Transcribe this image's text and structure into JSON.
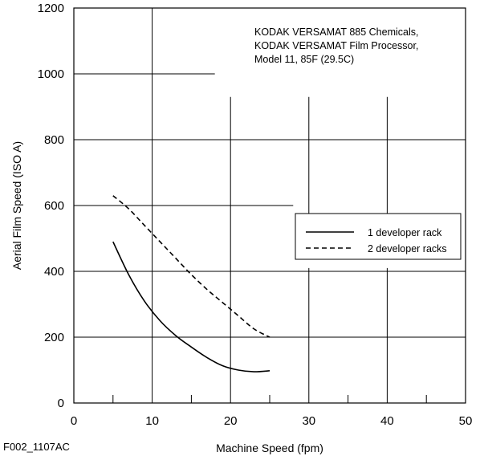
{
  "chart_data": {
    "type": "line",
    "title": "",
    "annotation": [
      "KODAK VERSAMAT 885 Chemicals,",
      "KODAK VERSAMAT Film Processor,",
      "Model 11, 85F (29.5C)"
    ],
    "xlabel": "Machine Speed (fpm)",
    "ylabel": "Aerial Film Speed (ISO A)",
    "figure_code": "F002_1107AC",
    "xlim": [
      0,
      50
    ],
    "ylim": [
      0,
      1200
    ],
    "x_ticks": [
      0,
      10,
      20,
      30,
      40,
      50
    ],
    "y_ticks": [
      0,
      200,
      400,
      600,
      800,
      1000,
      1200
    ],
    "grid": true,
    "legend_position": "right",
    "series": [
      {
        "name": "1 developer rack",
        "style": "solid",
        "x": [
          5,
          7,
          9,
          11,
          13,
          15,
          17,
          19,
          21,
          23,
          25
        ],
        "y": [
          490,
          390,
          310,
          250,
          205,
          170,
          138,
          113,
          100,
          95,
          98
        ]
      },
      {
        "name": "2 developer racks",
        "style": "dashed",
        "x": [
          5,
          7,
          9,
          11,
          13,
          15,
          17,
          19,
          21,
          23,
          25
        ],
        "y": [
          630,
          590,
          540,
          490,
          440,
          390,
          345,
          305,
          265,
          225,
          200
        ]
      }
    ]
  }
}
